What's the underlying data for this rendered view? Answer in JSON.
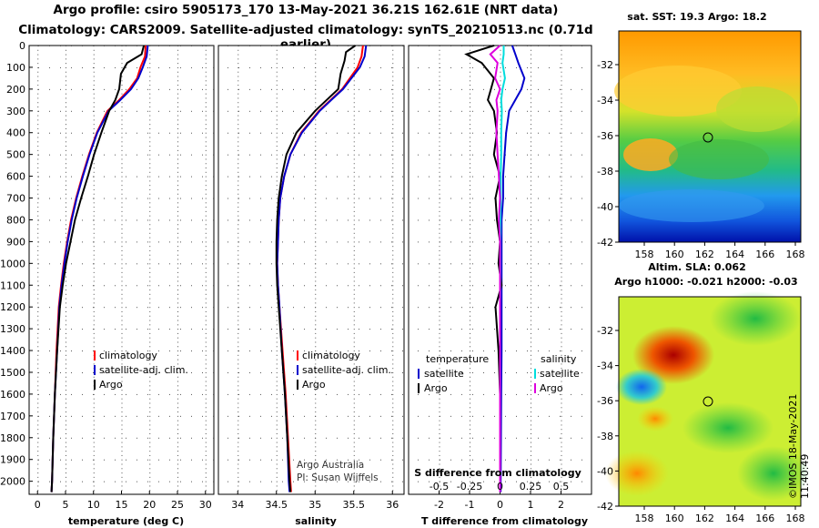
{
  "header": {
    "title_line1": "Argo profile: csiro 5905173_170 13-May-2021 36.21S 162.61E (NRT data)",
    "title_line2": "Climatology: CARS2009. Satellite-adjusted climatology: synTS_20210513.nc (0.71d earlier)"
  },
  "colors": {
    "climatology": "#ff0000",
    "satellite_adj": "#0000cc",
    "argo": "#000000",
    "sat_salinity": "#00dddd",
    "argo_salinity": "#dd00dd"
  },
  "chart_data": [
    {
      "type": "line",
      "panel": "temperature",
      "xlabel": "temperature (deg C)",
      "ylabel": "",
      "xlim": [
        -1.5,
        31.5
      ],
      "ylim": [
        2060,
        0
      ],
      "xticks": [
        "0",
        "5",
        "10",
        "15",
        "20",
        "25",
        "30"
      ],
      "yticks": [
        "0",
        "100",
        "200",
        "300",
        "400",
        "500",
        "600",
        "700",
        "800",
        "900",
        "1000",
        "1100",
        "1200",
        "1300",
        "1400",
        "1500",
        "1600",
        "1700",
        "1800",
        "1900",
        "2000"
      ],
      "legend": [
        "climatology",
        "satellite-adj. clim.",
        "Argo"
      ],
      "series": [
        {
          "name": "climatology",
          "x": [
            19.3,
            19.2,
            18.4,
            17.8,
            16.4,
            14.6,
            12.5,
            10.6,
            9.2,
            8.0,
            6.9,
            6.0,
            5.3,
            4.7,
            4.2,
            3.8,
            3.4,
            3.1,
            2.8,
            2.6,
            2.5
          ],
          "depth": [
            0,
            50,
            100,
            150,
            200,
            250,
            300,
            400,
            500,
            600,
            700,
            800,
            900,
            1000,
            1100,
            1200,
            1400,
            1600,
            1800,
            2000,
            2050
          ]
        },
        {
          "name": "satellite-adj. clim.",
          "x": [
            19.7,
            19.5,
            18.8,
            18.0,
            16.7,
            14.8,
            12.7,
            10.7,
            9.3,
            8.1,
            7.0,
            6.1,
            5.4,
            4.8,
            4.3,
            3.9,
            3.5,
            3.1,
            2.8,
            2.6,
            2.5
          ],
          "depth": [
            0,
            50,
            100,
            150,
            200,
            250,
            300,
            400,
            500,
            600,
            700,
            800,
            900,
            1000,
            1100,
            1200,
            1400,
            1600,
            1800,
            2000,
            2050
          ]
        },
        {
          "name": "Argo",
          "x": [
            19.0,
            18.6,
            16.0,
            14.9,
            14.6,
            13.9,
            12.8,
            11.4,
            10.1,
            9.0,
            7.8,
            6.7,
            5.9,
            5.1,
            4.5,
            4.0,
            3.5,
            3.1,
            2.8,
            2.6,
            2.5
          ],
          "depth": [
            0,
            40,
            80,
            130,
            200,
            250,
            300,
            400,
            500,
            600,
            700,
            800,
            900,
            1000,
            1100,
            1200,
            1400,
            1600,
            1800,
            2000,
            2050
          ]
        }
      ]
    },
    {
      "type": "line",
      "panel": "salinity",
      "xlabel": "salinity",
      "xlim": [
        33.75,
        36.15
      ],
      "ylim": [
        2060,
        0
      ],
      "xticks": [
        "34",
        "34.5",
        "35",
        "35.5",
        "36"
      ],
      "legend": [
        "climatology",
        "satellite-adj. clim.",
        "Argo"
      ],
      "series": [
        {
          "name": "climatology",
          "x": [
            35.62,
            35.6,
            35.55,
            35.45,
            35.35,
            35.2,
            35.05,
            34.82,
            34.68,
            34.6,
            34.55,
            34.53,
            34.52,
            34.51,
            34.52,
            34.54,
            34.58,
            34.62,
            34.65,
            34.68,
            34.69
          ],
          "depth": [
            0,
            50,
            100,
            150,
            200,
            250,
            300,
            400,
            500,
            600,
            700,
            800,
            900,
            1000,
            1100,
            1200,
            1400,
            1600,
            1800,
            2000,
            2050
          ]
        },
        {
          "name": "satellite-adj. clim.",
          "x": [
            35.66,
            35.64,
            35.58,
            35.47,
            35.36,
            35.21,
            35.06,
            34.83,
            34.68,
            34.6,
            34.55,
            34.53,
            34.52,
            34.51,
            34.52,
            34.54,
            34.57,
            34.61,
            34.64,
            34.66,
            34.67
          ],
          "depth": [
            0,
            50,
            100,
            150,
            200,
            250,
            300,
            400,
            500,
            600,
            700,
            800,
            900,
            1000,
            1100,
            1200,
            1400,
            1600,
            1800,
            2000,
            2050
          ]
        },
        {
          "name": "Argo",
          "x": [
            35.52,
            35.4,
            35.38,
            35.33,
            35.3,
            35.15,
            35.0,
            34.76,
            34.63,
            34.57,
            34.53,
            34.51,
            34.5,
            34.5,
            34.51,
            34.53,
            34.57,
            34.61,
            34.64,
            34.67,
            34.68
          ],
          "depth": [
            0,
            30,
            70,
            130,
            200,
            250,
            300,
            400,
            500,
            600,
            700,
            800,
            900,
            1000,
            1100,
            1200,
            1400,
            1600,
            1800,
            2000,
            2050
          ]
        }
      ]
    },
    {
      "type": "line",
      "panel": "difference",
      "xlabel": "T difference from climatology",
      "xlabel2": "S difference from climatology",
      "xlim": [
        -3,
        3
      ],
      "ylim": [
        2060,
        0
      ],
      "xticks": [
        "-2",
        "-1",
        "0",
        "1",
        "2"
      ],
      "xticks_s": [
        "-0.5",
        "-0.25",
        "0",
        "0.25",
        "0.5"
      ],
      "legend": [
        "temperature",
        "satellite",
        "Argo",
        "salinity",
        "satellite",
        "Argo"
      ],
      "series": [
        {
          "name": "T satellite",
          "x": [
            0.4,
            0.5,
            0.6,
            0.8,
            0.7,
            0.5,
            0.3,
            0.2,
            0.15,
            0.1,
            0.1,
            0.05,
            0.05,
            0.05,
            0.05,
            0.05,
            0.05,
            0.04,
            0.03,
            0.02,
            0.02
          ],
          "depth": [
            0,
            40,
            80,
            150,
            200,
            250,
            300,
            400,
            500,
            600,
            700,
            800,
            900,
            1000,
            1100,
            1200,
            1400,
            1600,
            1800,
            2000,
            2050
          ]
        },
        {
          "name": "T Argo",
          "x": [
            -0.2,
            -1.1,
            -0.6,
            -0.2,
            -0.3,
            -0.4,
            -0.2,
            -0.1,
            -0.2,
            0.0,
            -0.15,
            -0.1,
            0.0,
            -0.05,
            0.05,
            -0.15,
            -0.05,
            0.0,
            0.0,
            0.0,
            0.0
          ],
          "depth": [
            0,
            40,
            80,
            150,
            200,
            250,
            300,
            400,
            500,
            600,
            700,
            800,
            900,
            1000,
            1100,
            1200,
            1400,
            1600,
            1800,
            2000,
            2050
          ]
        },
        {
          "name": "S satellite",
          "x": [
            0.03,
            0.03,
            0.02,
            0.04,
            0.02,
            0.01,
            0.015,
            0.01,
            0.01,
            0.005,
            0.005,
            0.003,
            0.002,
            0.002,
            0.002,
            0.001,
            0.001,
            0.001,
            0.0,
            0.0,
            0.0
          ],
          "depth": [
            0,
            40,
            80,
            150,
            200,
            250,
            300,
            400,
            500,
            600,
            700,
            800,
            900,
            1000,
            1100,
            1200,
            1400,
            1600,
            1800,
            2000,
            2050
          ]
        },
        {
          "name": "S Argo",
          "x": [
            0.0,
            -0.08,
            -0.02,
            -0.04,
            0.0,
            -0.03,
            -0.02,
            -0.03,
            -0.02,
            -0.01,
            0.0,
            -0.01,
            0.0,
            0.0,
            0.0,
            0.0,
            0.0,
            0.0,
            0.0,
            0.0,
            0.0
          ],
          "depth": [
            0,
            40,
            80,
            150,
            200,
            250,
            300,
            400,
            500,
            600,
            700,
            800,
            900,
            1000,
            1100,
            1200,
            1400,
            1600,
            1800,
            2000,
            2050
          ]
        }
      ]
    },
    {
      "type": "heatmap",
      "panel": "sst_map",
      "title": "sat. SST: 19.3 Argo: 18.2",
      "xticks": [
        "158",
        "160",
        "162",
        "164",
        "166",
        "168"
      ],
      "yticks": [
        "-32",
        "-34",
        "-36",
        "-38",
        "-40",
        "-42"
      ],
      "marker": {
        "lon": 162.61,
        "lat": -36.21
      }
    },
    {
      "type": "heatmap",
      "panel": "sla_map",
      "title": "Altim. SLA: 0.062",
      "subtitle": "Argo h1000: -0.021 h2000: -0.03",
      "xticks": [
        "158",
        "160",
        "162",
        "164",
        "166",
        "168"
      ],
      "yticks": [
        "-32",
        "-34",
        "-36",
        "-38",
        "-40",
        "-42"
      ],
      "marker": {
        "lon": 162.61,
        "lat": -36.21
      }
    }
  ],
  "credits": {
    "line1": "Argo Australia",
    "line2": "PI: Susan Wijffels",
    "stamp": "©IMOS 18-May-2021 11:40:49"
  }
}
